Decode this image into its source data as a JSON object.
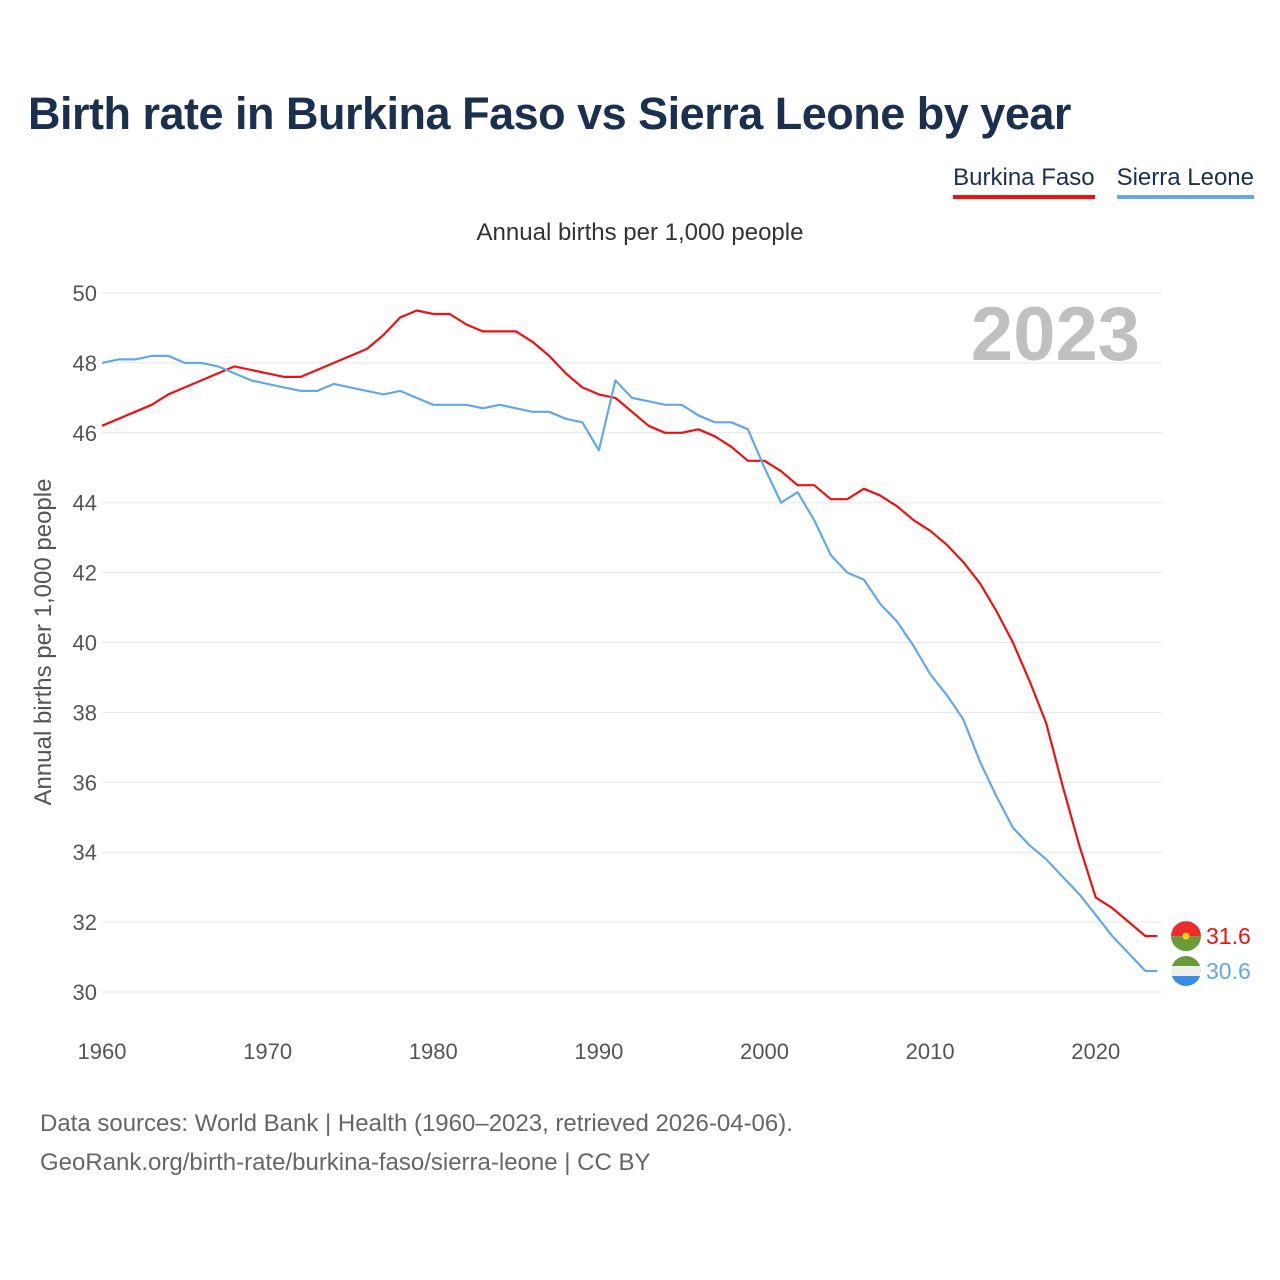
{
  "title": "Birth rate in Burkina Faso vs Sierra Leone by year",
  "footer": {
    "line1": "Data sources: World Bank | Health (1960–2023, retrieved 2026-04-06).",
    "line2": "GeoRank.org/birth-rate/burkina-faso/sierra-leone | CC BY"
  },
  "chart_data": {
    "type": "line",
    "title": "Birth rate in Burkina Faso vs Sierra Leone by year",
    "subtitle": "Annual births per 1,000 people",
    "ylabel": "Annual births per 1,000 people",
    "xlabel": "",
    "year_watermark": "2023",
    "xlim": [
      1960,
      2023
    ],
    "ylim": [
      30,
      50
    ],
    "x_ticks": [
      1960,
      1970,
      1980,
      1990,
      2000,
      2010,
      2020
    ],
    "y_ticks": [
      30,
      32,
      34,
      36,
      38,
      40,
      42,
      44,
      46,
      48,
      50
    ],
    "grid": true,
    "legend_position": "top-right",
    "x": [
      1960,
      1961,
      1962,
      1963,
      1964,
      1965,
      1966,
      1967,
      1968,
      1969,
      1970,
      1971,
      1972,
      1973,
      1974,
      1975,
      1976,
      1977,
      1978,
      1979,
      1980,
      1981,
      1982,
      1983,
      1984,
      1985,
      1986,
      1987,
      1988,
      1989,
      1990,
      1991,
      1992,
      1993,
      1994,
      1995,
      1996,
      1997,
      1998,
      1999,
      2000,
      2001,
      2002,
      2003,
      2004,
      2005,
      2006,
      2007,
      2008,
      2009,
      2010,
      2011,
      2012,
      2013,
      2014,
      2015,
      2016,
      2017,
      2018,
      2019,
      2020,
      2021,
      2022,
      2023
    ],
    "series": [
      {
        "name": "Burkina Faso",
        "color": "#ee1111",
        "end_label": "31.6",
        "values": [
          46.2,
          46.4,
          46.6,
          46.8,
          47.1,
          47.3,
          47.5,
          47.7,
          47.9,
          47.8,
          47.7,
          47.6,
          47.6,
          47.8,
          48.0,
          48.2,
          48.4,
          48.8,
          49.3,
          49.5,
          49.4,
          49.4,
          49.1,
          48.9,
          48.9,
          48.9,
          48.6,
          48.2,
          47.7,
          47.3,
          47.1,
          47.0,
          46.6,
          46.2,
          46.0,
          46.0,
          46.1,
          45.9,
          45.6,
          45.2,
          45.2,
          44.9,
          44.5,
          44.5,
          44.1,
          44.1,
          44.4,
          44.2,
          43.9,
          43.5,
          43.2,
          42.8,
          42.3,
          41.7,
          40.9,
          40.0,
          38.9,
          37.7,
          35.9,
          34.2,
          32.7,
          32.4,
          32.0,
          31.6
        ]
      },
      {
        "name": "Sierra Leone",
        "color": "#62a8ea",
        "end_label": "30.6",
        "values": [
          48.0,
          48.1,
          48.1,
          48.2,
          48.2,
          48.0,
          48.0,
          47.9,
          47.7,
          47.5,
          47.4,
          47.3,
          47.2,
          47.2,
          47.4,
          47.3,
          47.2,
          47.1,
          47.2,
          47.0,
          46.8,
          46.8,
          46.8,
          46.7,
          46.8,
          46.7,
          46.6,
          46.6,
          46.4,
          46.3,
          45.5,
          47.5,
          47.0,
          46.9,
          46.8,
          46.8,
          46.5,
          46.3,
          46.3,
          46.1,
          45.0,
          44.0,
          44.3,
          43.5,
          42.5,
          42.0,
          41.8,
          41.1,
          40.6,
          39.9,
          39.1,
          38.5,
          37.8,
          36.6,
          35.6,
          34.7,
          34.2,
          33.8,
          33.3,
          32.8,
          32.2,
          31.6,
          31.1,
          30.6
        ]
      }
    ]
  }
}
